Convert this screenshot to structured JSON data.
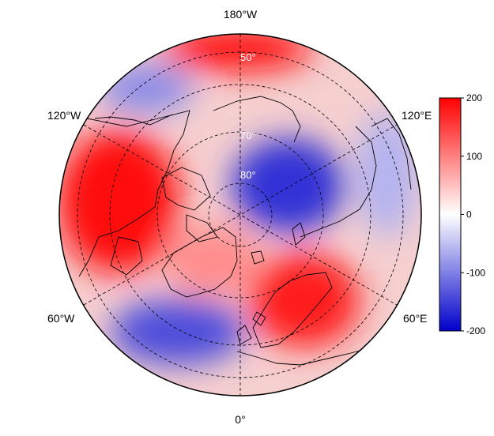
{
  "map": {
    "projection": "north-polar-stereographic",
    "longitude_labels": {
      "top": "180°W",
      "bottom": "0°",
      "upper_left": "120°W",
      "lower_left": "60°W",
      "upper_right": "120°E",
      "lower_right": "60°E"
    },
    "latitude_labels": [
      "50°",
      "70°",
      "80°"
    ],
    "gridlines": "dashed",
    "coastlines": true,
    "country_borders": true
  },
  "colorbar": {
    "ticks": [
      "200",
      "100",
      "0",
      "-100",
      "-200"
    ],
    "min": -200,
    "max": 200,
    "colors": {
      "max": "#ff0000",
      "mid": "#ffffff",
      "min": "#0000cc"
    }
  },
  "field_blobs": [
    {
      "value": 190,
      "region": "north-america-west"
    },
    {
      "value": 190,
      "region": "north-pacific-top"
    },
    {
      "value": 180,
      "region": "scandinavia-barents"
    },
    {
      "value": 90,
      "region": "greenland-atlantic"
    },
    {
      "value": -160,
      "region": "east-siberia"
    },
    {
      "value": -140,
      "region": "north-atlantic-low"
    },
    {
      "value": -90,
      "region": "bering-alaska"
    },
    {
      "value": -60,
      "region": "east-asia-coast"
    }
  ]
}
